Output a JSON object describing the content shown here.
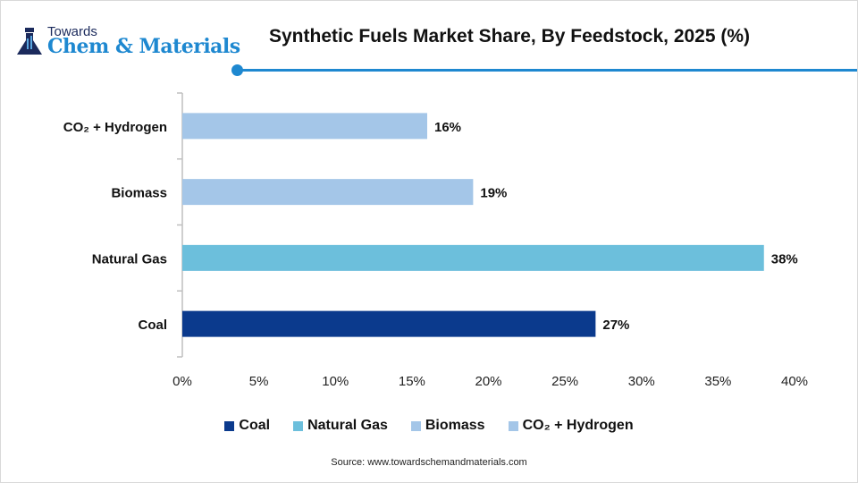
{
  "logo": {
    "line1": "Towards",
    "line2": "Chem & Materials"
  },
  "source": "Source: www.towardschemandmaterials.com",
  "chart_data": {
    "type": "bar",
    "orientation": "horizontal",
    "title": "Synthetic Fuels Market Share, By Feedstock, 2025 (%)",
    "categories": [
      "Coal",
      "Natural Gas",
      "Biomass",
      "CO₂ + Hydrogen"
    ],
    "values": [
      27,
      38,
      19,
      16
    ],
    "data_labels": [
      "27%",
      "38%",
      "19%",
      "16%"
    ],
    "colors": [
      "#0b3a8d",
      "#6cbfdc",
      "#a4c6e8",
      "#a4c6e8"
    ],
    "xlim": [
      0,
      40
    ],
    "xticks": [
      0,
      5,
      10,
      15,
      20,
      25,
      30,
      35,
      40
    ],
    "xtick_labels": [
      "0%",
      "5%",
      "10%",
      "15%",
      "20%",
      "25%",
      "30%",
      "35%",
      "40%"
    ],
    "grid": false,
    "legend_position": "bottom"
  }
}
